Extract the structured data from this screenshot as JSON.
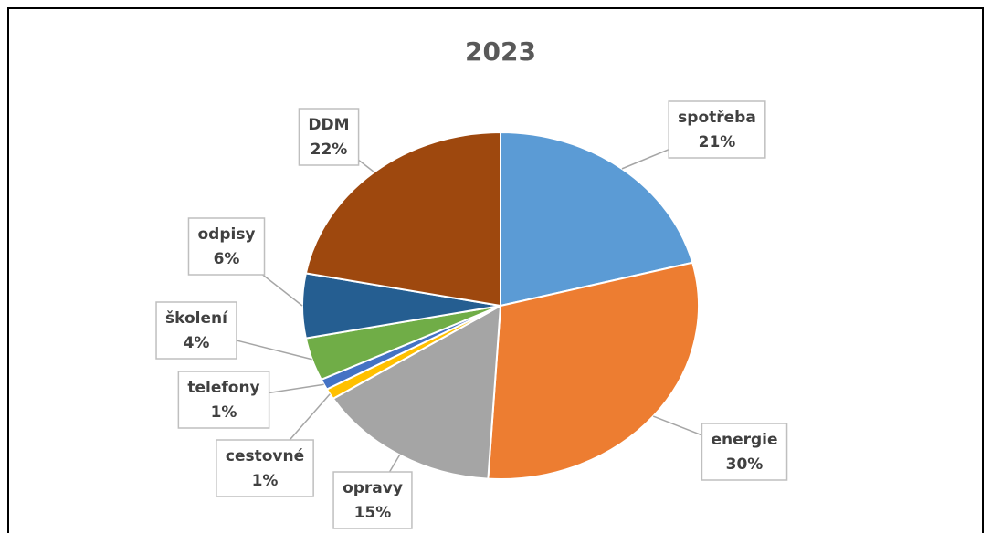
{
  "chart_data": {
    "type": "pie",
    "title": "2023",
    "categories": [
      "spotřeba",
      "energie",
      "opravy",
      "cestovné",
      "telefony",
      "školení",
      "odpisy",
      "DDM"
    ],
    "values": [
      21,
      30,
      15,
      1,
      1,
      4,
      6,
      22
    ],
    "value_labels": [
      "21%",
      "30%",
      "15%",
      "1%",
      "1%",
      "4%",
      "6%",
      "22%"
    ],
    "colors": [
      "#5b9bd5",
      "#ed7d31",
      "#a5a5a5",
      "#ffc000",
      "#4472c4",
      "#70ad47",
      "#255e91",
      "#9e480e"
    ]
  }
}
